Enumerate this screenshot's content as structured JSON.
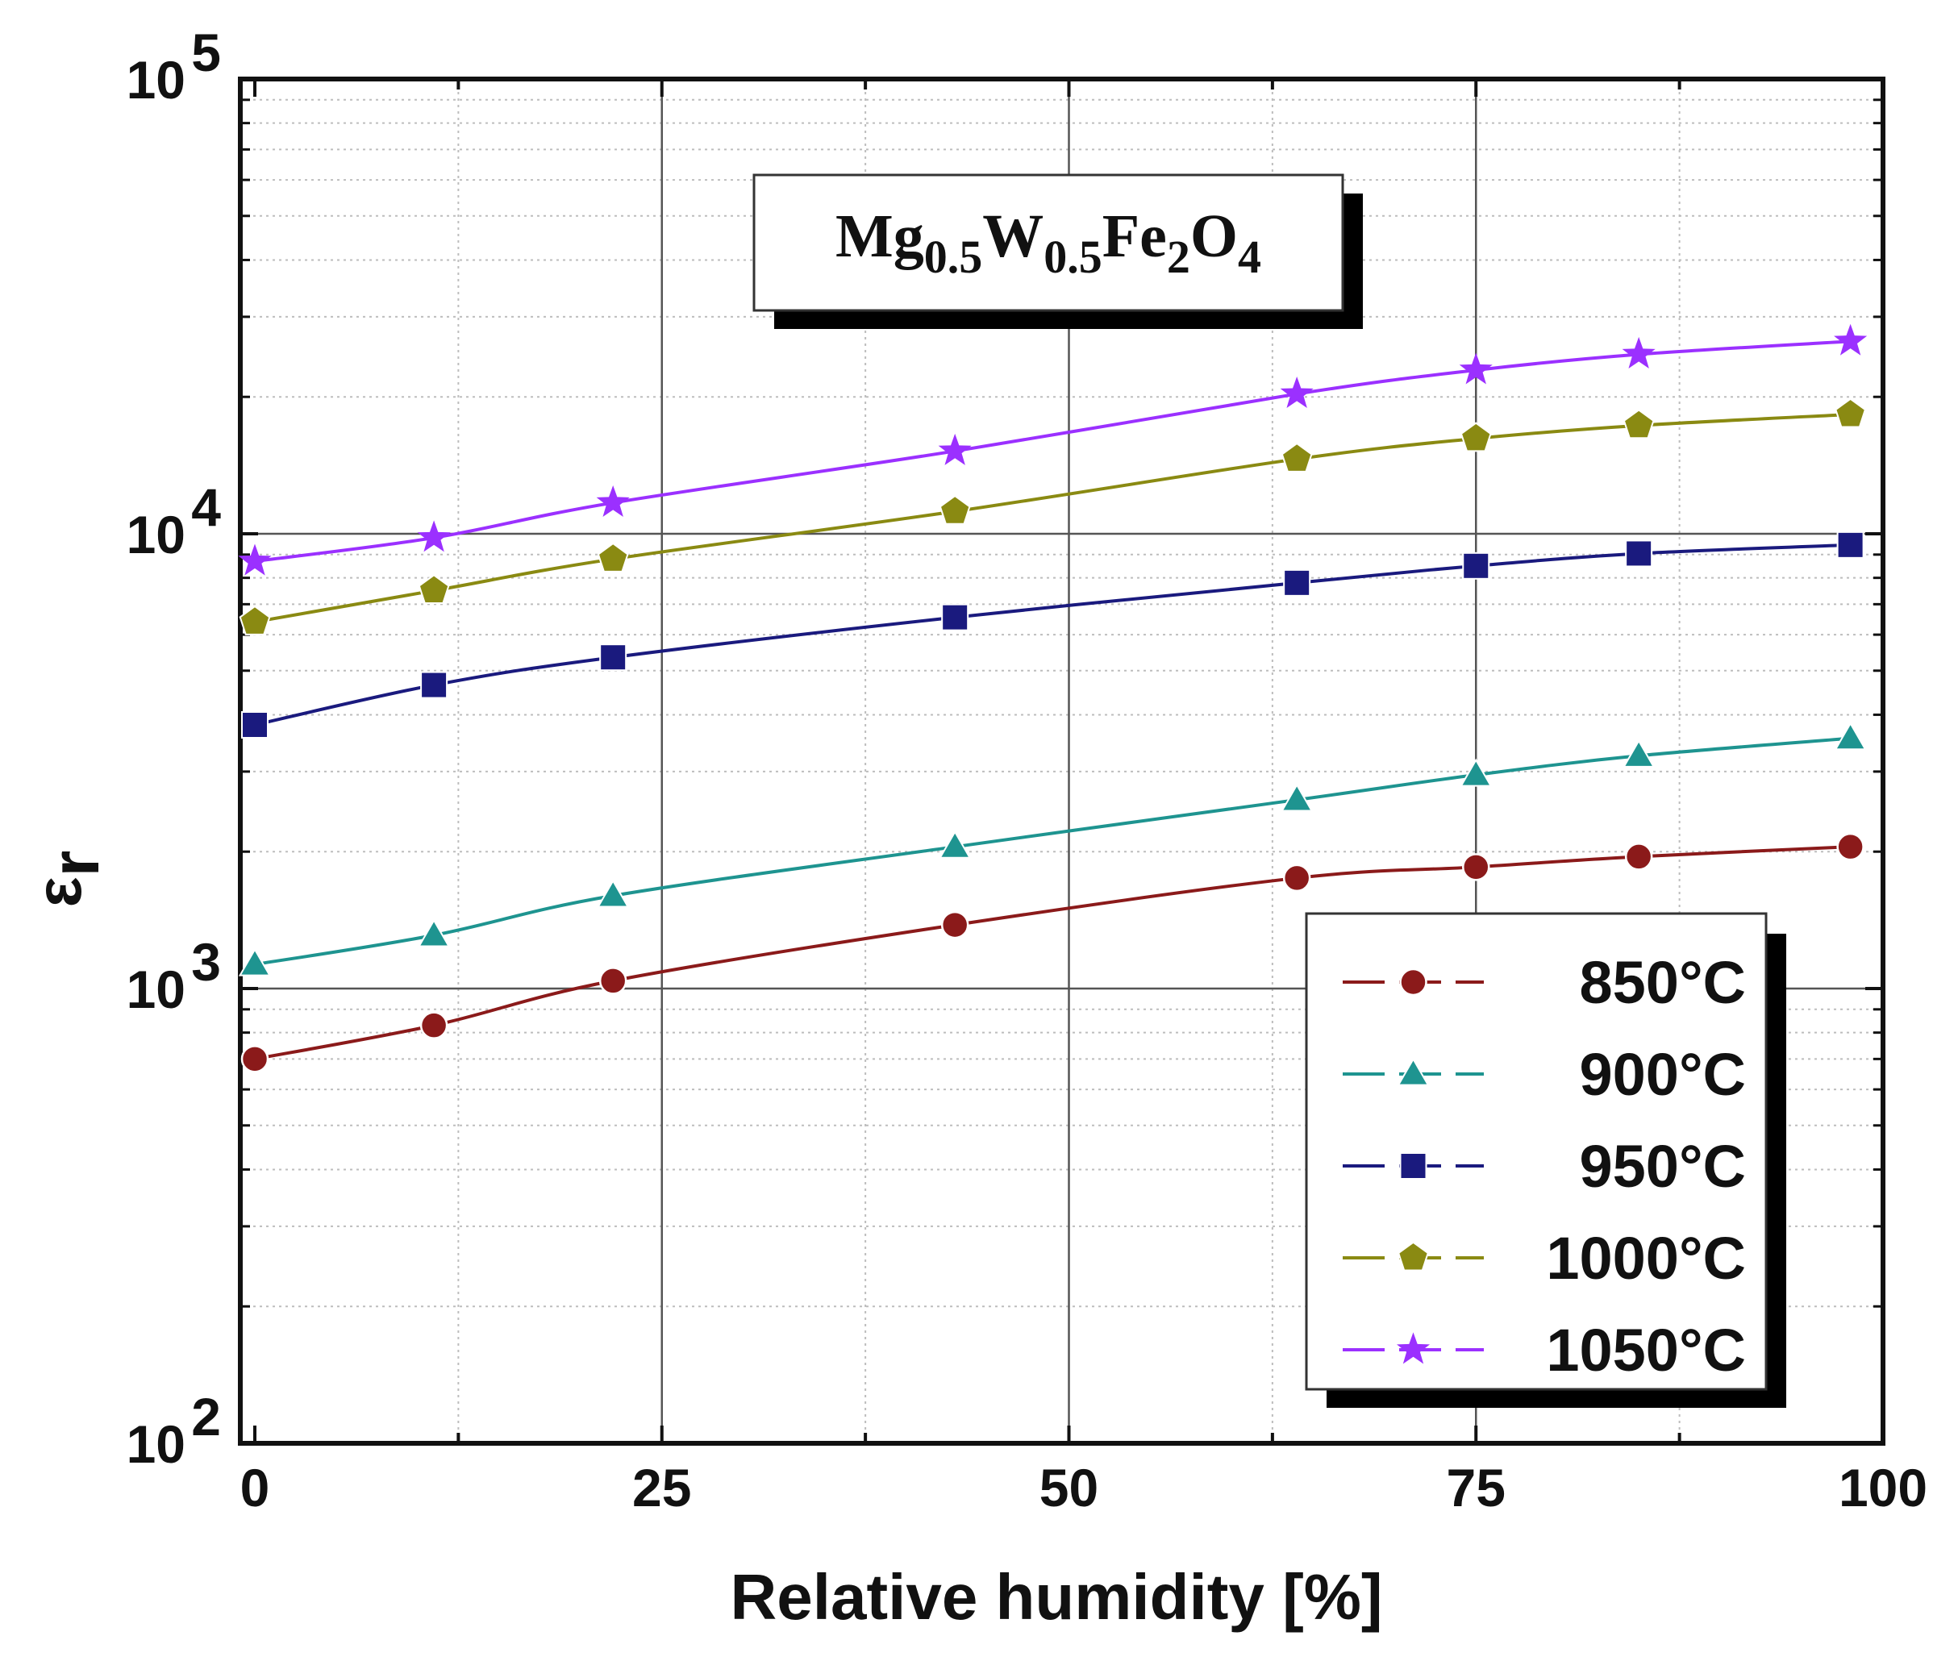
{
  "chart_data": {
    "type": "line",
    "title": "",
    "xlabel": "Relative humidity [%]",
    "ylabel": "ε",
    "ylabel_sub": "r",
    "yscale": "log",
    "xlim": [
      0,
      100
    ],
    "ylim": [
      100,
      100000
    ],
    "grid": true,
    "x_ticks": [
      "0",
      "25",
      "50",
      "75",
      "100"
    ],
    "y_ticks": [
      {
        "base": "10",
        "exp": "2",
        "value": 100
      },
      {
        "base": "10",
        "exp": "3",
        "value": 1000
      },
      {
        "base": "10",
        "exp": "4",
        "value": 10000
      },
      {
        "base": "10",
        "exp": "5",
        "value": 100000
      }
    ],
    "annotation": {
      "parts": [
        {
          "text": "Mg",
          "sub": false
        },
        {
          "text": "0.5",
          "sub": true
        },
        {
          "text": "W",
          "sub": false
        },
        {
          "text": "0.5",
          "sub": true
        },
        {
          "text": "Fe",
          "sub": false
        },
        {
          "text": "2",
          "sub": true
        },
        {
          "text": "O",
          "sub": false
        },
        {
          "text": "4",
          "sub": true
        }
      ]
    },
    "legend_position": "bottom-right",
    "x": [
      0,
      11,
      22,
      43,
      64,
      75,
      85,
      98
    ],
    "series": [
      {
        "name": "850°C",
        "color": "#8b1a1a",
        "marker": "circle",
        "values": [
          700,
          830,
          1040,
          1380,
          1750,
          1850,
          1950,
          2050
        ]
      },
      {
        "name": "900°C",
        "color": "#1e9490",
        "marker": "triangle",
        "values": [
          1130,
          1310,
          1600,
          2050,
          2600,
          2950,
          3250,
          3550
        ]
      },
      {
        "name": "950°C",
        "color": "#1a1a7e",
        "marker": "square",
        "values": [
          3800,
          4650,
          5350,
          6550,
          7800,
          8500,
          9050,
          9450
        ]
      },
      {
        "name": "1000°C",
        "color": "#8a8a12",
        "marker": "pentagon",
        "values": [
          6400,
          7500,
          8800,
          11200,
          14600,
          16200,
          17300,
          18300
        ]
      },
      {
        "name": "1050°C",
        "color": "#9b30ff",
        "marker": "star",
        "values": [
          8700,
          9800,
          11700,
          15200,
          20300,
          22900,
          24800,
          26500
        ]
      }
    ]
  }
}
